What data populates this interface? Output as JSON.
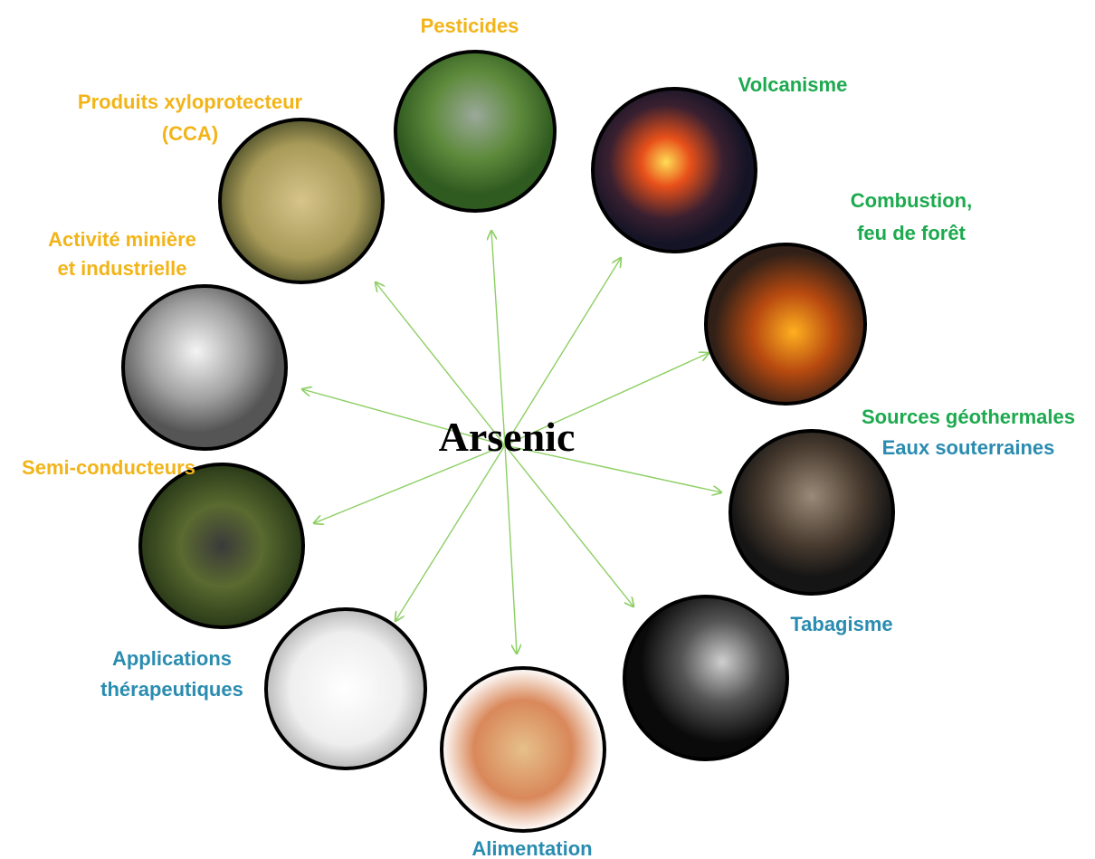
{
  "center": "Arsenic",
  "nodes": [
    {
      "lines": [
        "Pesticides"
      ]
    },
    {
      "lines": [
        "Volcanisme"
      ]
    },
    {
      "lines": [
        "Combustion,",
        "feu de forêt"
      ]
    },
    {
      "lines": [
        "Sources géothermales",
        "Eaux souterraines"
      ]
    },
    {
      "lines": [
        "Tabagisme"
      ]
    },
    {
      "lines": [
        "Alimentation"
      ]
    },
    {
      "lines": [
        "Applications",
        "thérapeutiques"
      ]
    },
    {
      "lines": [
        "Semi-conducteurs"
      ]
    },
    {
      "lines": [
        "Activité minière",
        "et industrielle"
      ]
    },
    {
      "lines": [
        "Produits xyloprotecteur",
        "(CCA)"
      ]
    }
  ]
}
